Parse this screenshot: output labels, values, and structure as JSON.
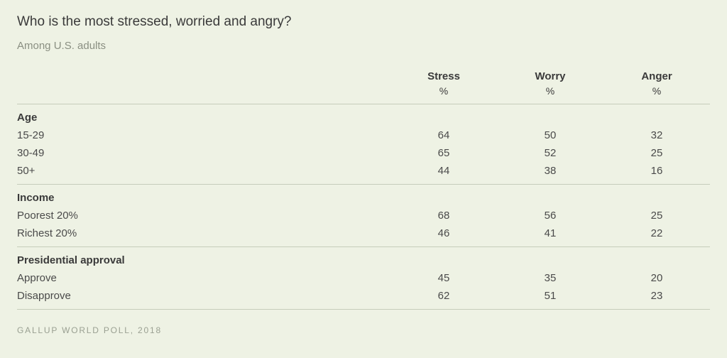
{
  "title": "Who is the most stressed, worried and angry?",
  "subtitle": "Among U.S. adults",
  "source": "GALLUP WORLD POLL, 2018",
  "columns": [
    "Stress",
    "Worry",
    "Anger"
  ],
  "unit": "%",
  "colors": {
    "background": "#eef2e4",
    "text_primary": "#3a3a3a",
    "text_secondary": "#8a8f82",
    "border": "#c6cdbb"
  },
  "groups": [
    {
      "label": "Age",
      "rows": [
        {
          "label": "15-29",
          "values": [
            64,
            50,
            32
          ]
        },
        {
          "label": "30-49",
          "values": [
            65,
            52,
            25
          ]
        },
        {
          "label": "50+",
          "values": [
            44,
            38,
            16
          ]
        }
      ]
    },
    {
      "label": "Income",
      "rows": [
        {
          "label": "Poorest 20%",
          "values": [
            68,
            56,
            25
          ]
        },
        {
          "label": "Richest 20%",
          "values": [
            46,
            41,
            22
          ]
        }
      ]
    },
    {
      "label": "Presidential approval",
      "rows": [
        {
          "label": "Approve",
          "values": [
            45,
            35,
            20
          ]
        },
        {
          "label": "Disapprove",
          "values": [
            62,
            51,
            23
          ]
        }
      ]
    }
  ]
}
